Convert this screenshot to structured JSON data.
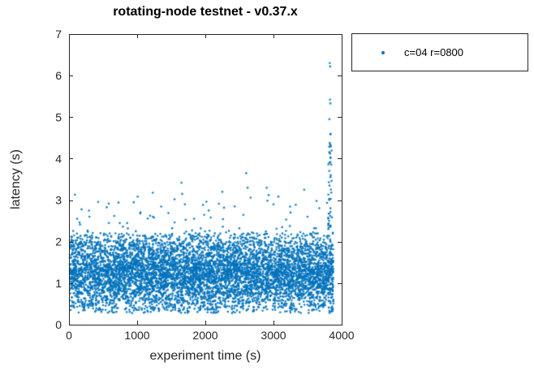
{
  "chart_data": {
    "type": "scatter",
    "title": "rotating-node testnet - v0.37.x",
    "xlabel": "experiment time (s)",
    "ylabel": "latency (s)",
    "xlim": [
      0,
      4000
    ],
    "ylim": [
      0,
      7
    ],
    "xticks": [
      0,
      1000,
      2000,
      3000,
      4000
    ],
    "yticks": [
      0,
      1,
      2,
      3,
      4,
      5,
      6,
      7
    ],
    "grid": false,
    "axis_color": "#262626",
    "background_color": "#ffffff",
    "legend": {
      "position": "outside-top-right",
      "border_color": "#262626"
    },
    "series": [
      {
        "name": "c=04 r=0800",
        "marker": "dot",
        "color": "#0072BD",
        "marker_radius_px": 1.3,
        "description": "Dense latency band ~0.3-2.2 s across experiment time 0-3880 s, sporadic outliers up to ~3.65 s, and a tall vertical outlier spike near t=3820 s reaching 6.3 s.",
        "distribution": {
          "seed": 42,
          "dense_band": {
            "count": 6500,
            "x_range": [
              10,
              3880
            ],
            "y_range": [
              0.28,
              2.2
            ],
            "triangular_fraction": 0.75
          },
          "mid_outliers": {
            "count": 85,
            "x_range": [
              60,
              3880
            ],
            "y_range": [
              2.2,
              3.2
            ],
            "power": 2.2
          },
          "spike": {
            "count": 38,
            "x_range": [
              3800,
              3858
            ],
            "y_range": [
              2.3,
              4.6
            ],
            "power": 1.3
          },
          "notable_points": [
            [
              120,
              2.55
            ],
            [
              300,
              2.6
            ],
            [
              950,
              2.95
            ],
            [
              1230,
              2.6
            ],
            [
              1650,
              3.42
            ],
            [
              1660,
              3.15
            ],
            [
              1700,
              2.9
            ],
            [
              2050,
              2.75
            ],
            [
              2250,
              3.2
            ],
            [
              2430,
              2.85
            ],
            [
              2600,
              3.65
            ],
            [
              2620,
              3.3
            ],
            [
              2900,
              3.3
            ],
            [
              3000,
              2.9
            ],
            [
              3250,
              2.7
            ],
            [
              3450,
              3.25
            ],
            [
              3500,
              2.6
            ],
            [
              3825,
              6.3
            ],
            [
              3831,
              6.22
            ],
            [
              3828,
              5.42
            ],
            [
              3834,
              5.33
            ],
            [
              3820,
              4.95
            ],
            [
              3838,
              4.6
            ],
            [
              3824,
              4.38
            ],
            [
              3830,
              4.12
            ],
            [
              3818,
              3.9
            ],
            [
              3840,
              3.6
            ],
            [
              3822,
              3.35
            ]
          ]
        }
      }
    ]
  }
}
